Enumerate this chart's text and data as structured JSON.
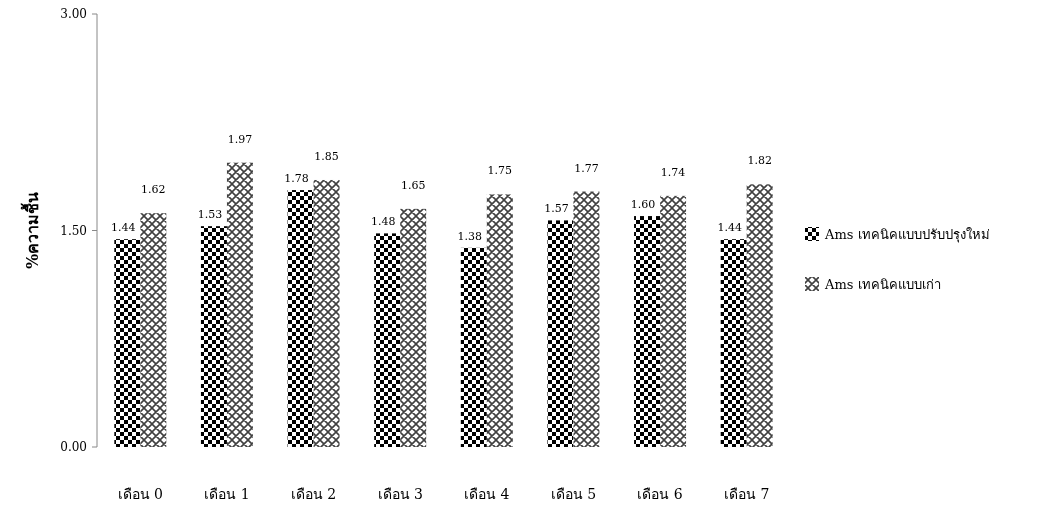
{
  "chart_data": {
    "type": "bar",
    "ylabel": "%ความชื้น",
    "categories": [
      "เดือน 0",
      "เดือน 1",
      "เดือน 2",
      "เดือน 3",
      "เดือน 4",
      "เดือน 5",
      "เดือน 6",
      "เดือน 7"
    ],
    "series": [
      {
        "name": "Ams เทคนิคแบบปรับปรุงใหม่",
        "color": "#000000",
        "values": [
          1.44,
          1.53,
          1.78,
          1.48,
          1.38,
          1.57,
          1.6,
          1.44
        ],
        "value_labels": [
          "1.44",
          "1.53",
          "1.78",
          "1.48",
          "1.38",
          "1.57",
          "1.60",
          "1.44"
        ]
      },
      {
        "name": "Ams เทคนิคแบบเก่า",
        "color": "#404040",
        "values": [
          1.62,
          1.97,
          1.85,
          1.65,
          1.75,
          1.77,
          1.74,
          1.82
        ],
        "value_labels": [
          "1.62",
          "1.97",
          "1.85",
          "1.65",
          "1.75",
          "1.77",
          "1.74",
          "1.82"
        ]
      }
    ],
    "ylim": [
      0,
      3
    ],
    "yticks": [
      {
        "value": 0,
        "label": "0.00"
      },
      {
        "value": 1.5,
        "label": "1.50"
      },
      {
        "value": 3,
        "label": "3.00"
      }
    ],
    "legend": "right",
    "grid": false
  }
}
